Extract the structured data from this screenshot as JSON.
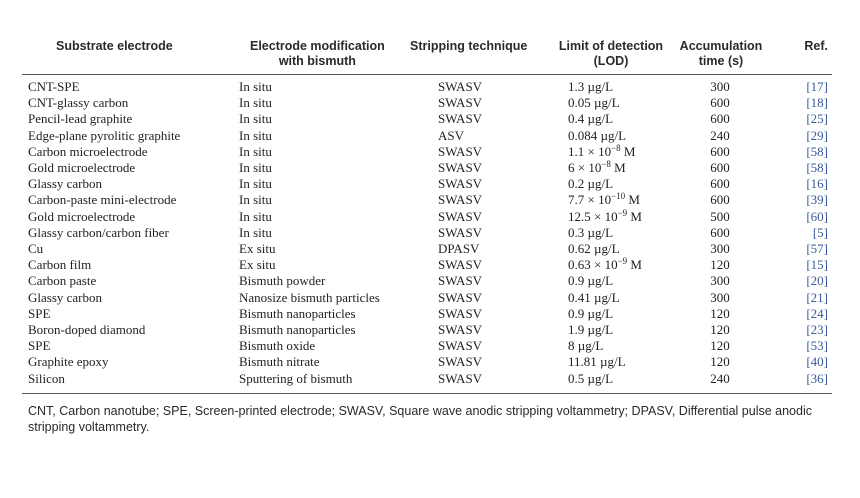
{
  "headers": {
    "substrate": "Substrate electrode",
    "modification_1": "Electrode modification",
    "modification_2": "with bismuth",
    "technique": "Stripping technique",
    "lod_1": "Limit of detection",
    "lod_2": "(LOD)",
    "accum_1": "Accumulation",
    "accum_2": "time (s)",
    "ref": "Ref."
  },
  "rows": [
    {
      "substrate": "CNT-SPE",
      "modification": "In situ",
      "technique": "SWASV",
      "lod": "1.3 µg/L",
      "time": "300",
      "ref": "[17]"
    },
    {
      "substrate": "CNT-glassy carbon",
      "modification": "In situ",
      "technique": "SWASV",
      "lod": "0.05 µg/L",
      "time": "600",
      "ref": "[18]"
    },
    {
      "substrate": "Pencil-lead graphite",
      "modification": "In situ",
      "technique": "SWASV",
      "lod": "0.4 µg/L",
      "time": "600",
      "ref": "[25]"
    },
    {
      "substrate": "Edge-plane pyrolitic graphite",
      "modification": "In situ",
      "technique": "ASV",
      "lod": "0.084 µg/L",
      "time": "240",
      "ref": "[29]"
    },
    {
      "substrate": "Carbon microelectrode",
      "modification": "In situ",
      "technique": "SWASV",
      "lod": "1.1 × 10",
      "lod_exp": "−8",
      "lod_unit": " M",
      "time": "600",
      "ref": "[58]"
    },
    {
      "substrate": "Gold microelectrode",
      "modification": "In situ",
      "technique": "SWASV",
      "lod": "6 × 10",
      "lod_exp": "−8",
      "lod_unit": " M",
      "time": "600",
      "ref": "[58]"
    },
    {
      "substrate": "Glassy carbon",
      "modification": "In situ",
      "technique": "SWASV",
      "lod": "0.2 µg/L",
      "time": "600",
      "ref": "[16]"
    },
    {
      "substrate": "Carbon-paste mini-electrode",
      "modification": "In situ",
      "technique": "SWASV",
      "lod": "7.7 × 10",
      "lod_exp": "−10",
      "lod_unit": " M",
      "time": "600",
      "ref": "[39]"
    },
    {
      "substrate": "Gold microelectrode",
      "modification": "In situ",
      "technique": "SWASV",
      "lod": "12.5 × 10",
      "lod_exp": "−9",
      "lod_unit": " M",
      "time": "500",
      "ref": "[60]"
    },
    {
      "substrate": "Glassy carbon/carbon fiber",
      "modification": "In situ",
      "technique": "SWASV",
      "lod": "0.3 µg/L",
      "time": "600",
      "ref": "[5]"
    },
    {
      "substrate": "Cu",
      "modification": "Ex situ",
      "technique": "DPASV",
      "lod": "0.62 µg/L",
      "time": "300",
      "ref": "[57]"
    },
    {
      "substrate": "Carbon film",
      "modification": "Ex situ",
      "technique": "SWASV",
      "lod": "0.63 × 10",
      "lod_exp": "−9",
      "lod_unit": " M",
      "time": "120",
      "ref": "[15]"
    },
    {
      "substrate": "Carbon paste",
      "modification": "Bismuth powder",
      "technique": "SWASV",
      "lod": "0.9 µg/L",
      "time": "300",
      "ref": "[20]"
    },
    {
      "substrate": "Glassy carbon",
      "modification": "Nanosize bismuth particles",
      "technique": "SWASV",
      "lod": "0.41 µg/L",
      "time": "300",
      "ref": "[21]"
    },
    {
      "substrate": "SPE",
      "modification": "Bismuth nanoparticles",
      "technique": "SWASV",
      "lod": "0.9 µg/L",
      "time": "120",
      "ref": "[24]"
    },
    {
      "substrate": "Boron-doped diamond",
      "modification": "Bismuth nanoparticles",
      "technique": "SWASV",
      "lod": "1.9 µg/L",
      "time": "120",
      "ref": "[23]"
    },
    {
      "substrate": "SPE",
      "modification": "Bismuth oxide",
      "technique": "SWASV",
      "lod": "8 µg/L",
      "time": "120",
      "ref": "[53]"
    },
    {
      "substrate": "Graphite epoxy",
      "modification": "Bismuth nitrate",
      "technique": "SWASV",
      "lod": "11.81 µg/L",
      "time": "120",
      "ref": "[40]"
    },
    {
      "substrate": "Silicon",
      "modification": "Sputtering of bismuth",
      "technique": "SWASV",
      "lod": "0.5 µg/L",
      "time": "240",
      "ref": "[36]"
    }
  ],
  "footnote": "CNT, Carbon nanotube; SPE, Screen-printed electrode; SWASV, Square wave anodic stripping voltammetry; DPASV, Differential pulse anodic stripping voltammetry."
}
